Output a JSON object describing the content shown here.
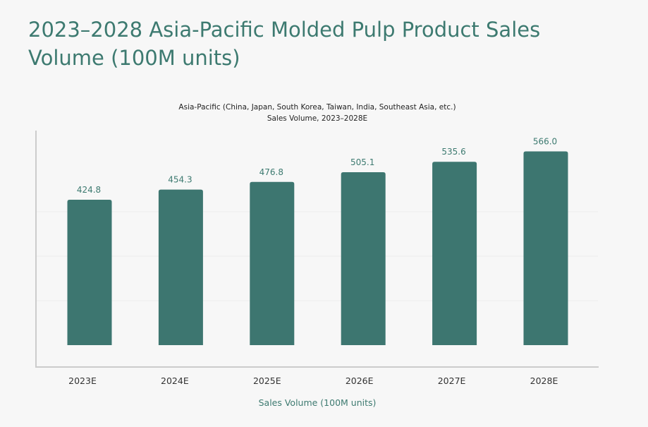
{
  "page_title": "2023–2028 Asia-Pacific Molded Pulp Product Sales Volume (100M units)",
  "chart_data": {
    "type": "bar",
    "title": "Asia-Pacific (China, Japan, South Korea, Taiwan, India, Southeast Asia, etc.)",
    "subtitle": "Sales Volume, 2023–2028E",
    "categories": [
      "2023E",
      "2024E",
      "2025E",
      "2026E",
      "2027E",
      "2028E"
    ],
    "values": [
      424.8,
      454.3,
      476.8,
      505.1,
      535.6,
      566.0
    ],
    "value_labels": [
      "424.8",
      "454.3",
      "476.8",
      "505.1",
      "535.6",
      "566.0"
    ],
    "xlabel": "Sales Volume (100M units)",
    "ylabel": "",
    "grid": true,
    "bar_color": "#3d7670"
  }
}
